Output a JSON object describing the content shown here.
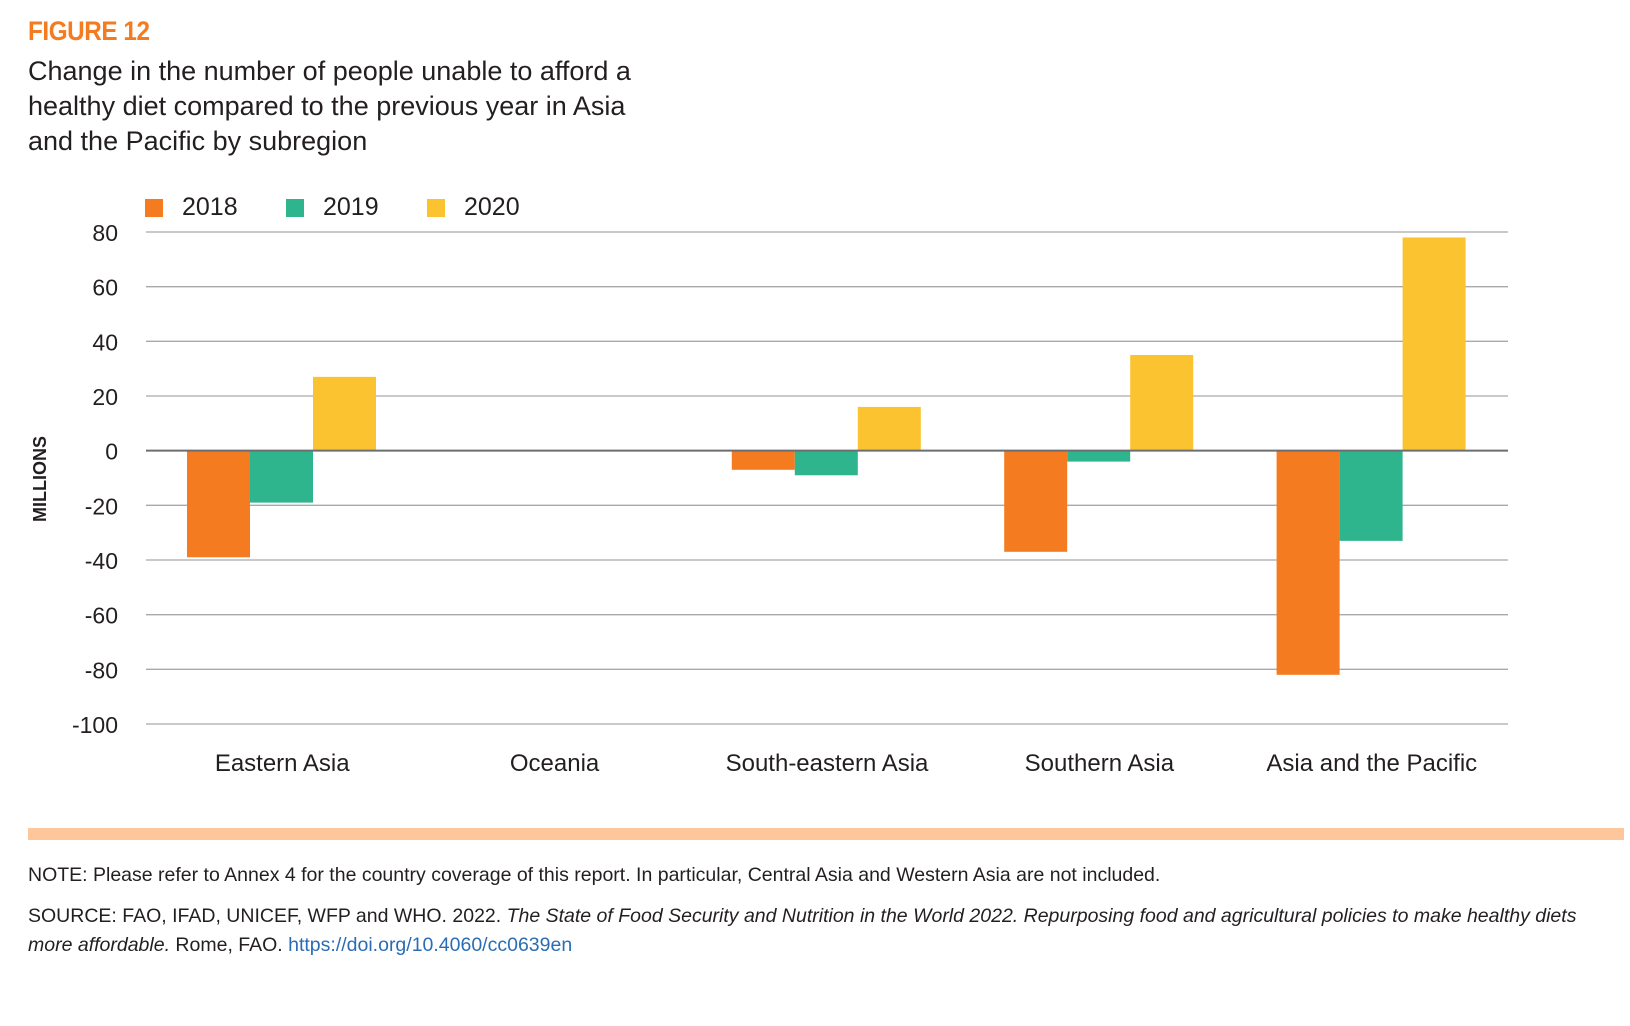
{
  "figure": {
    "label": "FIGURE 12",
    "title": "Change in the number of people unable to afford a healthy diet compared to the previous year in Asia and the Pacific by subregion"
  },
  "chart_data": {
    "type": "bar",
    "title": "Change in the number of people unable to afford a healthy diet compared to the previous year in Asia and the Pacific by subregion",
    "xlabel": "",
    "ylabel": "MILLIONS",
    "ylim": [
      -100,
      80
    ],
    "yticks": [
      80,
      60,
      40,
      20,
      0,
      -20,
      -40,
      -60,
      -80,
      -100
    ],
    "grid": true,
    "legend_position": "top-left",
    "categories": [
      "Eastern Asia",
      "Oceania",
      "South-eastern Asia",
      "Southern Asia",
      "Asia and the Pacific"
    ],
    "series": [
      {
        "name": "2018",
        "color": "#f47b20",
        "values": [
          -39,
          0,
          -7,
          -37,
          -82
        ]
      },
      {
        "name": "2019",
        "color": "#2fb58e",
        "values": [
          -19,
          0,
          -9,
          -4,
          -33
        ]
      },
      {
        "name": "2020",
        "color": "#fcc330",
        "values": [
          27,
          0,
          16,
          35,
          78
        ]
      }
    ]
  },
  "footer": {
    "note": "NOTE: Please refer to Annex 4 for the country coverage of this report. In particular, Central Asia and Western Asia are not included.",
    "source_prefix": "SOURCE: FAO, IFAD, UNICEF, WFP and WHO. 2022.",
    "source_italic": "The State of Food Security and Nutrition in the World 2022. Repurposing food and agricultural policies to make healthy diets more affordable.",
    "source_suffix": "Rome, FAO.",
    "source_link": "https://doi.org/10.4060/cc0639en"
  }
}
